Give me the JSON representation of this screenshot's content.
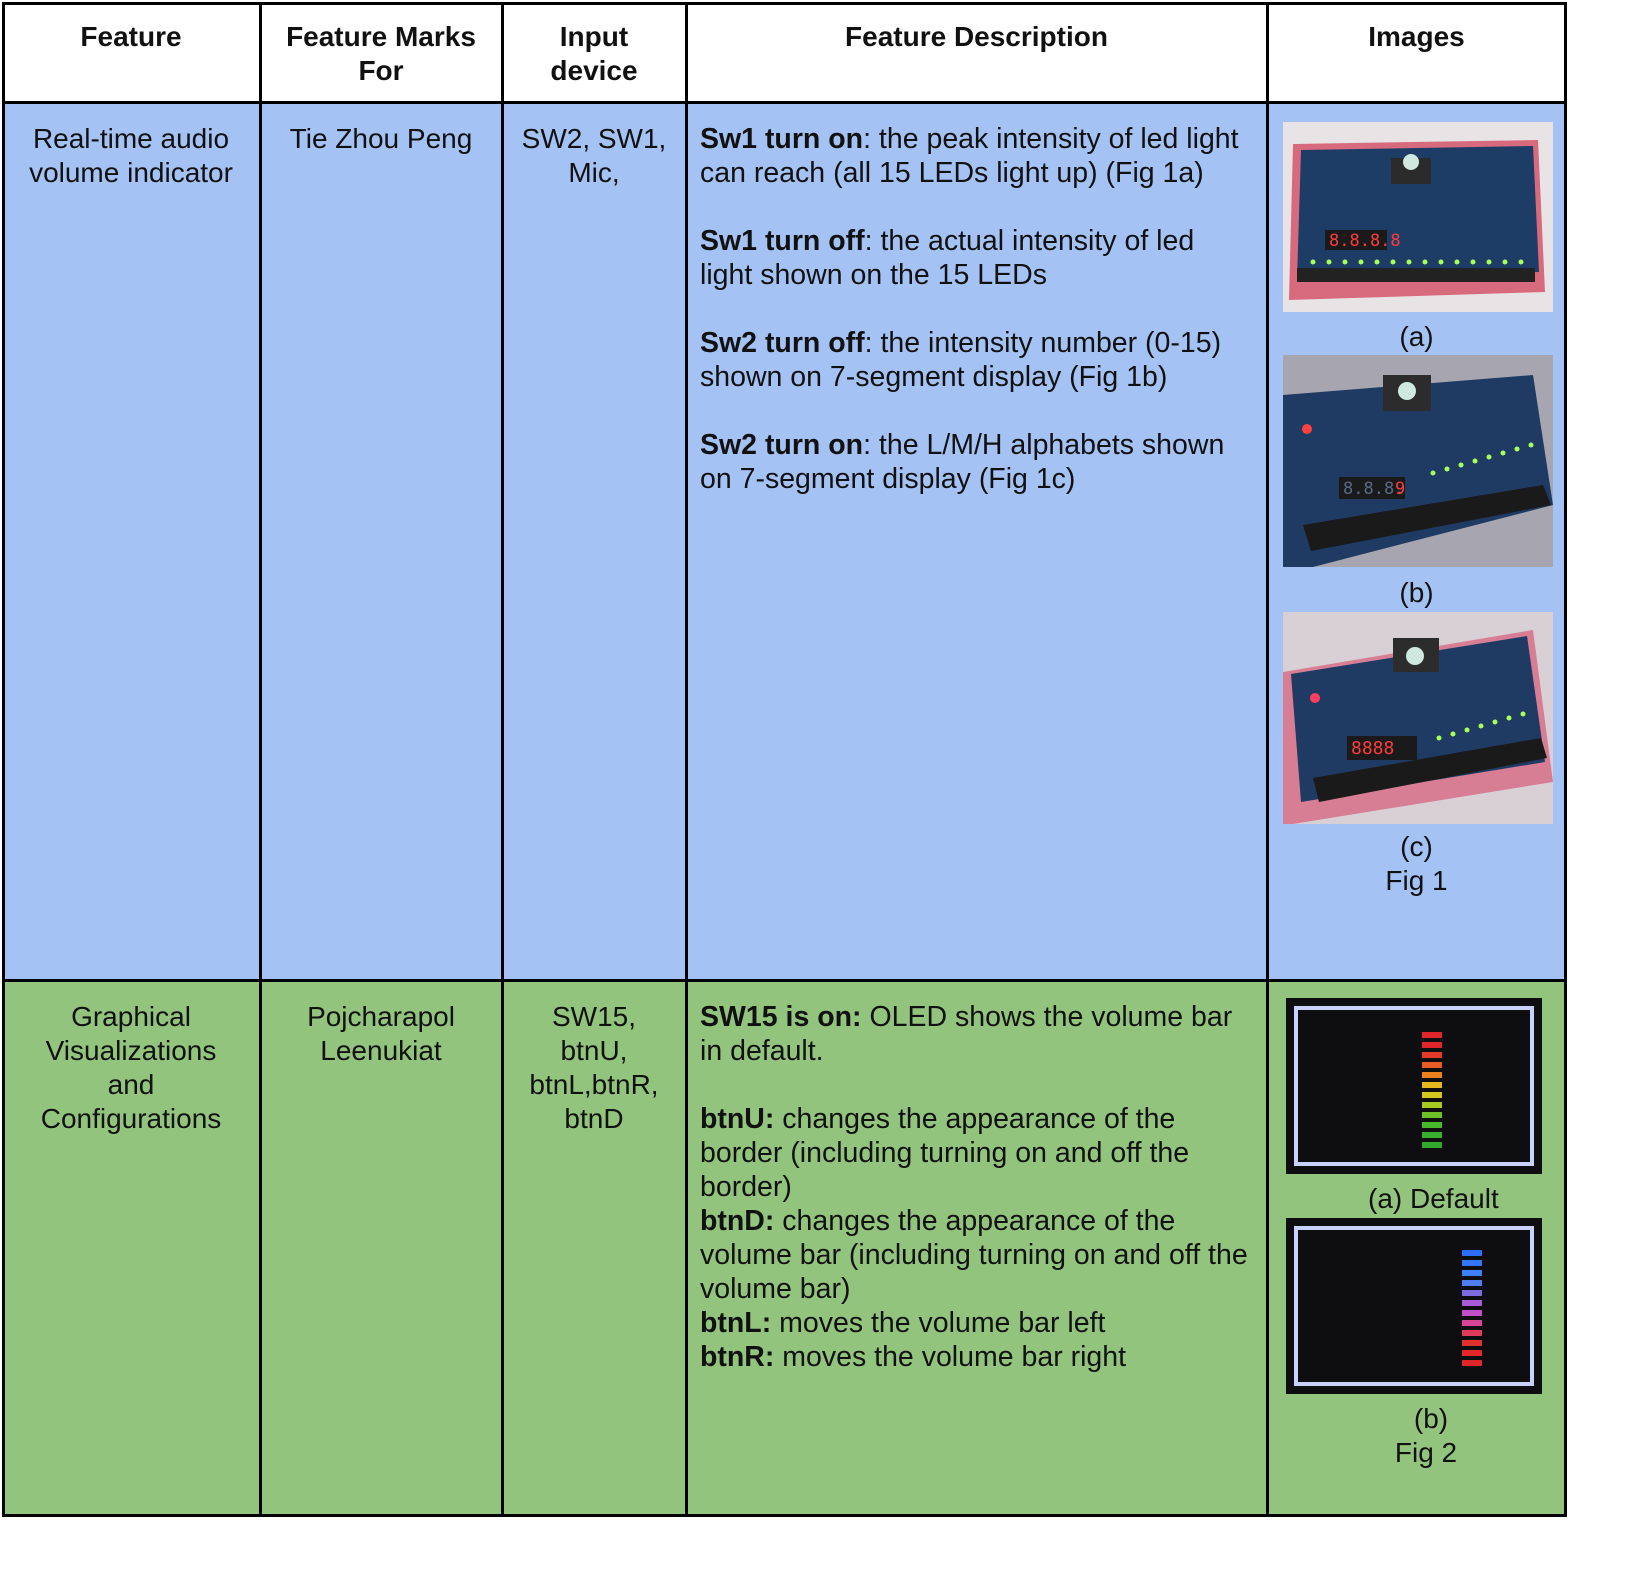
{
  "headers": {
    "feature": "Feature",
    "marks_for": "Feature Marks For",
    "input_device": "Input device",
    "description": "Feature Description",
    "images": "Images"
  },
  "rows": [
    {
      "feature": "Real-time audio volume indicator",
      "marks_for": "Tie Zhou Peng",
      "input_device": "SW2, SW1, Mic,",
      "color": "#a4c2f4",
      "description": [
        {
          "bold": "Sw1 turn on",
          "text": ": the peak intensity of led light can reach (all 15 LEDs light up) (Fig 1a)"
        },
        {
          "bold": "Sw1 turn off",
          "text": ": the actual intensity of led light shown on the 15 LEDs"
        },
        {
          "bold": "Sw2 turn off",
          "text": ": the intensity number (0-15) shown on 7-segment display (Fig 1b)"
        },
        {
          "bold": "Sw2 turn on",
          "text": ": the L/M/H alphabets shown on 7-segment display (Fig 1c)"
        }
      ],
      "captions": [
        "(a)",
        "(b)",
        "(c)"
      ],
      "figure": "Fig 1"
    },
    {
      "feature": "Graphical Visualizations and Configurations",
      "marks_for": "Pojcharapol Leenukiat",
      "input_device": "SW15, btnU, btnL,btnR, btnD",
      "color": "#93c47d",
      "description": [
        {
          "bold": "SW15 is on:",
          "text": " OLED shows the volume bar in default."
        },
        {
          "bold": "btnU:",
          "text": " changes the appearance of the border (including turning on and off the border)"
        },
        {
          "bold": "btnD:",
          "text": " changes the appearance of the volume bar (including turning on and off the volume bar)"
        },
        {
          "bold": "btnL:",
          "text": " moves the volume bar left"
        },
        {
          "bold": "btnR:",
          "text": " moves the volume bar right"
        }
      ],
      "captions": [
        "(a)  Default",
        "(b)"
      ],
      "figure": "Fig 2"
    }
  ],
  "image_icons": [
    "fpga-board-photo-icon",
    "oled-volume-bar-icon"
  ]
}
